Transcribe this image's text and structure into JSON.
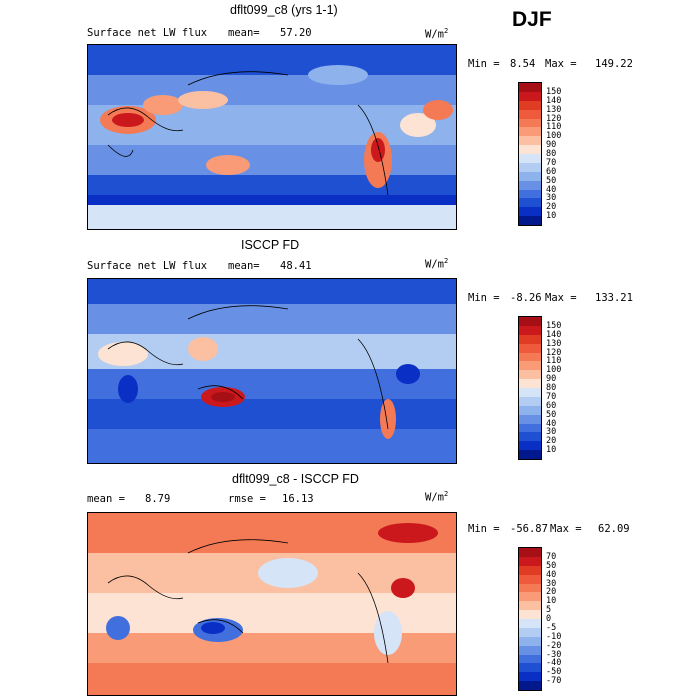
{
  "season": "DJF",
  "panels": [
    {
      "title": "dflt099_c8 (yrs 1-1)",
      "left_label": "Surface net LW flux",
      "mean_label": "mean=",
      "mean_value": "57.20",
      "units": "W/m",
      "units_exp": "2",
      "min_label": "Min =",
      "min_value": "8.54",
      "max_label": "Max =",
      "max_value": "149.22",
      "levels": [
        "150",
        "140",
        "130",
        "120",
        "110",
        "100",
        "90",
        "80",
        "70",
        "60",
        "50",
        "40",
        "30",
        "20",
        "10"
      ],
      "colors": [
        "#a50f15",
        "#cb181d",
        "#e03b23",
        "#ef5a3c",
        "#f47a55",
        "#f99b77",
        "#fbbfa2",
        "#fde3d3",
        "#d6e4f7",
        "#b3cdf2",
        "#8eb2ec",
        "#6891e6",
        "#426fde",
        "#2050d2",
        "#0a2fc4",
        "#02198e"
      ]
    },
    {
      "title": "ISCCP FD",
      "left_label": "Surface net LW flux",
      "mean_label": "mean=",
      "mean_value": "48.41",
      "units": "W/m",
      "units_exp": "2",
      "min_label": "Min =",
      "min_value": "-8.26",
      "max_label": "Max =",
      "max_value": "133.21",
      "levels": [
        "150",
        "140",
        "130",
        "120",
        "110",
        "100",
        "90",
        "80",
        "70",
        "60",
        "50",
        "40",
        "30",
        "20",
        "10"
      ],
      "colors": [
        "#a50f15",
        "#cb181d",
        "#e03b23",
        "#ef5a3c",
        "#f47a55",
        "#f99b77",
        "#fbbfa2",
        "#fde3d3",
        "#d6e4f7",
        "#b3cdf2",
        "#8eb2ec",
        "#6891e6",
        "#426fde",
        "#2050d2",
        "#0a2fc4",
        "#02198e"
      ]
    },
    {
      "title": "dflt099_c8 - ISCCP FD",
      "left_label": "mean =",
      "mean_label": "",
      "mean_value": "8.79",
      "rmse_label": "rmse =",
      "rmse_value": "16.13",
      "units": "W/m",
      "units_exp": "2",
      "min_label": "Min =",
      "min_value": "-56.87",
      "max_label": "Max =",
      "max_value": "62.09",
      "levels": [
        "70",
        "50",
        "40",
        "30",
        "20",
        "10",
        "5",
        "0",
        "-5",
        "-10",
        "-20",
        "-30",
        "-40",
        "-50",
        "-70"
      ],
      "colors": [
        "#a50f15",
        "#cb181d",
        "#e03b23",
        "#ef5a3c",
        "#f47a55",
        "#f99b77",
        "#fbbfa2",
        "#fde3d3",
        "#d6e4f7",
        "#b3cdf2",
        "#8eb2ec",
        "#6891e6",
        "#426fde",
        "#2050d2",
        "#0a2fc4",
        "#02198e"
      ]
    }
  ]
}
